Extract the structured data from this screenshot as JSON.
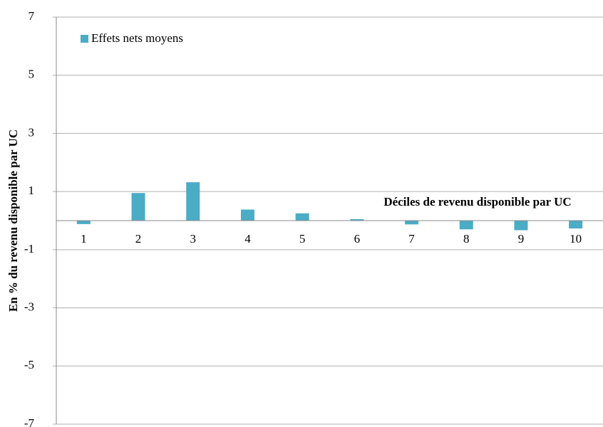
{
  "chart_data": {
    "type": "bar",
    "x_label": "Déciles de revenu disponible par UC",
    "y_label": "En % du revenu disponible par UC",
    "categories": [
      "1",
      "2",
      "3",
      "4",
      "5",
      "6",
      "7",
      "8",
      "9",
      "10"
    ],
    "series": [
      {
        "name": "Effets nets moyens",
        "color": "#4bacc6",
        "values": [
          -0.12,
          0.95,
          1.32,
          0.38,
          0.25,
          0.05,
          -0.13,
          -0.3,
          -0.33,
          -0.27
        ]
      }
    ],
    "ylim": [
      -7,
      7
    ],
    "yticks": [
      -7,
      -5,
      -3,
      -1,
      1,
      3,
      5,
      7
    ],
    "grid": true,
    "legend": "top-left"
  }
}
